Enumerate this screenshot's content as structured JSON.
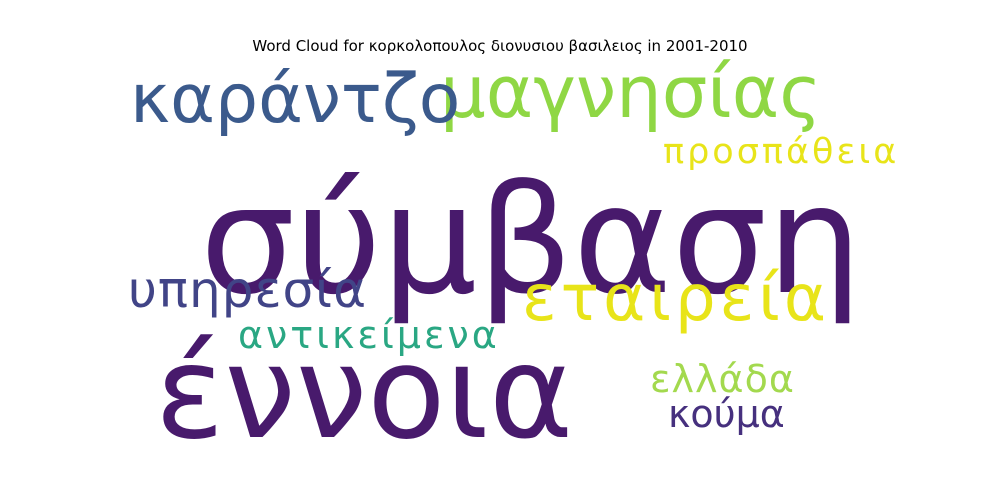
{
  "chart_data": {
    "type": "wordcloud",
    "title": "Word Cloud for κορκολοπουλος διονυσιου βασιλειος in 2001-2010",
    "words": [
      {
        "text": "σύμβαση",
        "rank": 1,
        "color": "#481a6c"
      },
      {
        "text": "έννοια",
        "rank": 2,
        "color": "#481a6c"
      },
      {
        "text": "μαγνησίας",
        "rank": 3,
        "color": "#8fd744"
      },
      {
        "text": "καράντζο",
        "rank": 4,
        "color": "#3b5a8c"
      },
      {
        "text": "εταιρεία",
        "rank": 5,
        "color": "#e8e419"
      },
      {
        "text": "υπηρεσία",
        "rank": 6,
        "color": "#414487"
      },
      {
        "text": "αντικείμενα",
        "rank": 7,
        "color": "#2aa783"
      },
      {
        "text": "ελλάδα",
        "rank": 8,
        "color": "#a3d94e"
      },
      {
        "text": "κούμα",
        "rank": 9,
        "color": "#46307e"
      },
      {
        "text": "προσπάθεια",
        "rank": 10,
        "color": "#e8e419"
      }
    ]
  }
}
